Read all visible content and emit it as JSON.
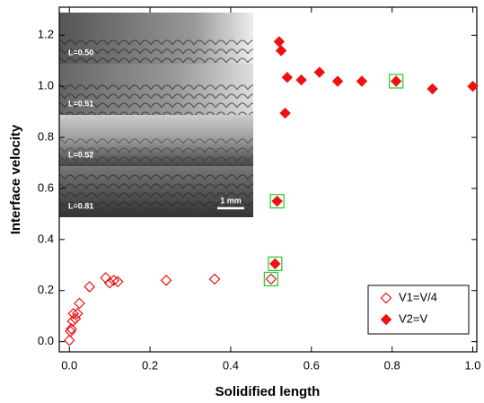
{
  "chart_data": {
    "type": "scatter",
    "x_label": "Solidified length",
    "y_label": "Interface velocity",
    "xlim": [
      -0.025,
      1.01
    ],
    "ylim": [
      -0.04,
      1.31
    ],
    "xticks": [
      {
        "value": 0,
        "label": "0.0"
      },
      {
        "value": 0.2,
        "label": "0.2"
      },
      {
        "value": 0.4,
        "label": "0.4"
      },
      {
        "value": 0.6,
        "label": "0.6"
      },
      {
        "value": 0.8,
        "label": "0.8"
      },
      {
        "value": 1,
        "label": "1.0"
      }
    ],
    "yticks": [
      {
        "value": 0,
        "label": "0.0"
      },
      {
        "value": 0.2,
        "label": "0.2"
      },
      {
        "value": 0.4,
        "label": "0.4"
      },
      {
        "value": 0.6,
        "label": "0.6"
      },
      {
        "value": 0.8,
        "label": "0.8"
      },
      {
        "value": 1,
        "label": "1.0"
      },
      {
        "value": 1.2,
        "label": "1.2"
      }
    ],
    "legend_position": "lower right",
    "highlight_color": "#33cc33",
    "series": [
      {
        "name": "V1=V/4",
        "color": "#ee1111",
        "marker": "open-diamond",
        "x": [
          0.0,
          0.003,
          0.005,
          0.008,
          0.01,
          0.015,
          0.02,
          0.025,
          0.05,
          0.09,
          0.1,
          0.11,
          0.12,
          0.24,
          0.36,
          0.5
        ],
        "values": [
          0.005,
          0.04,
          0.05,
          0.08,
          0.11,
          0.09,
          0.11,
          0.15,
          0.215,
          0.25,
          0.23,
          0.24,
          0.235,
          0.24,
          0.245,
          0.245
        ],
        "highlighted": [
          false,
          false,
          false,
          false,
          false,
          false,
          false,
          false,
          false,
          false,
          false,
          false,
          false,
          false,
          false,
          true
        ]
      },
      {
        "name": "V2=V",
        "color": "#ee1111",
        "marker": "filled-diamond",
        "x": [
          0.51,
          0.515,
          0.52,
          0.525,
          0.535,
          0.54,
          0.575,
          0.62,
          0.665,
          0.725,
          0.81,
          0.9,
          1.0
        ],
        "values": [
          0.305,
          0.55,
          1.175,
          1.14,
          0.895,
          1.035,
          1.025,
          1.055,
          1.02,
          1.02,
          1.02,
          0.99,
          1.0
        ],
        "highlighted": [
          true,
          true,
          false,
          false,
          false,
          false,
          false,
          false,
          false,
          false,
          true,
          false,
          false
        ]
      }
    ],
    "inset": {
      "panels": [
        "L=0.50",
        "L=0.51",
        "L=0.52",
        "L=0.81"
      ],
      "scale_bar": "1 mm"
    }
  }
}
